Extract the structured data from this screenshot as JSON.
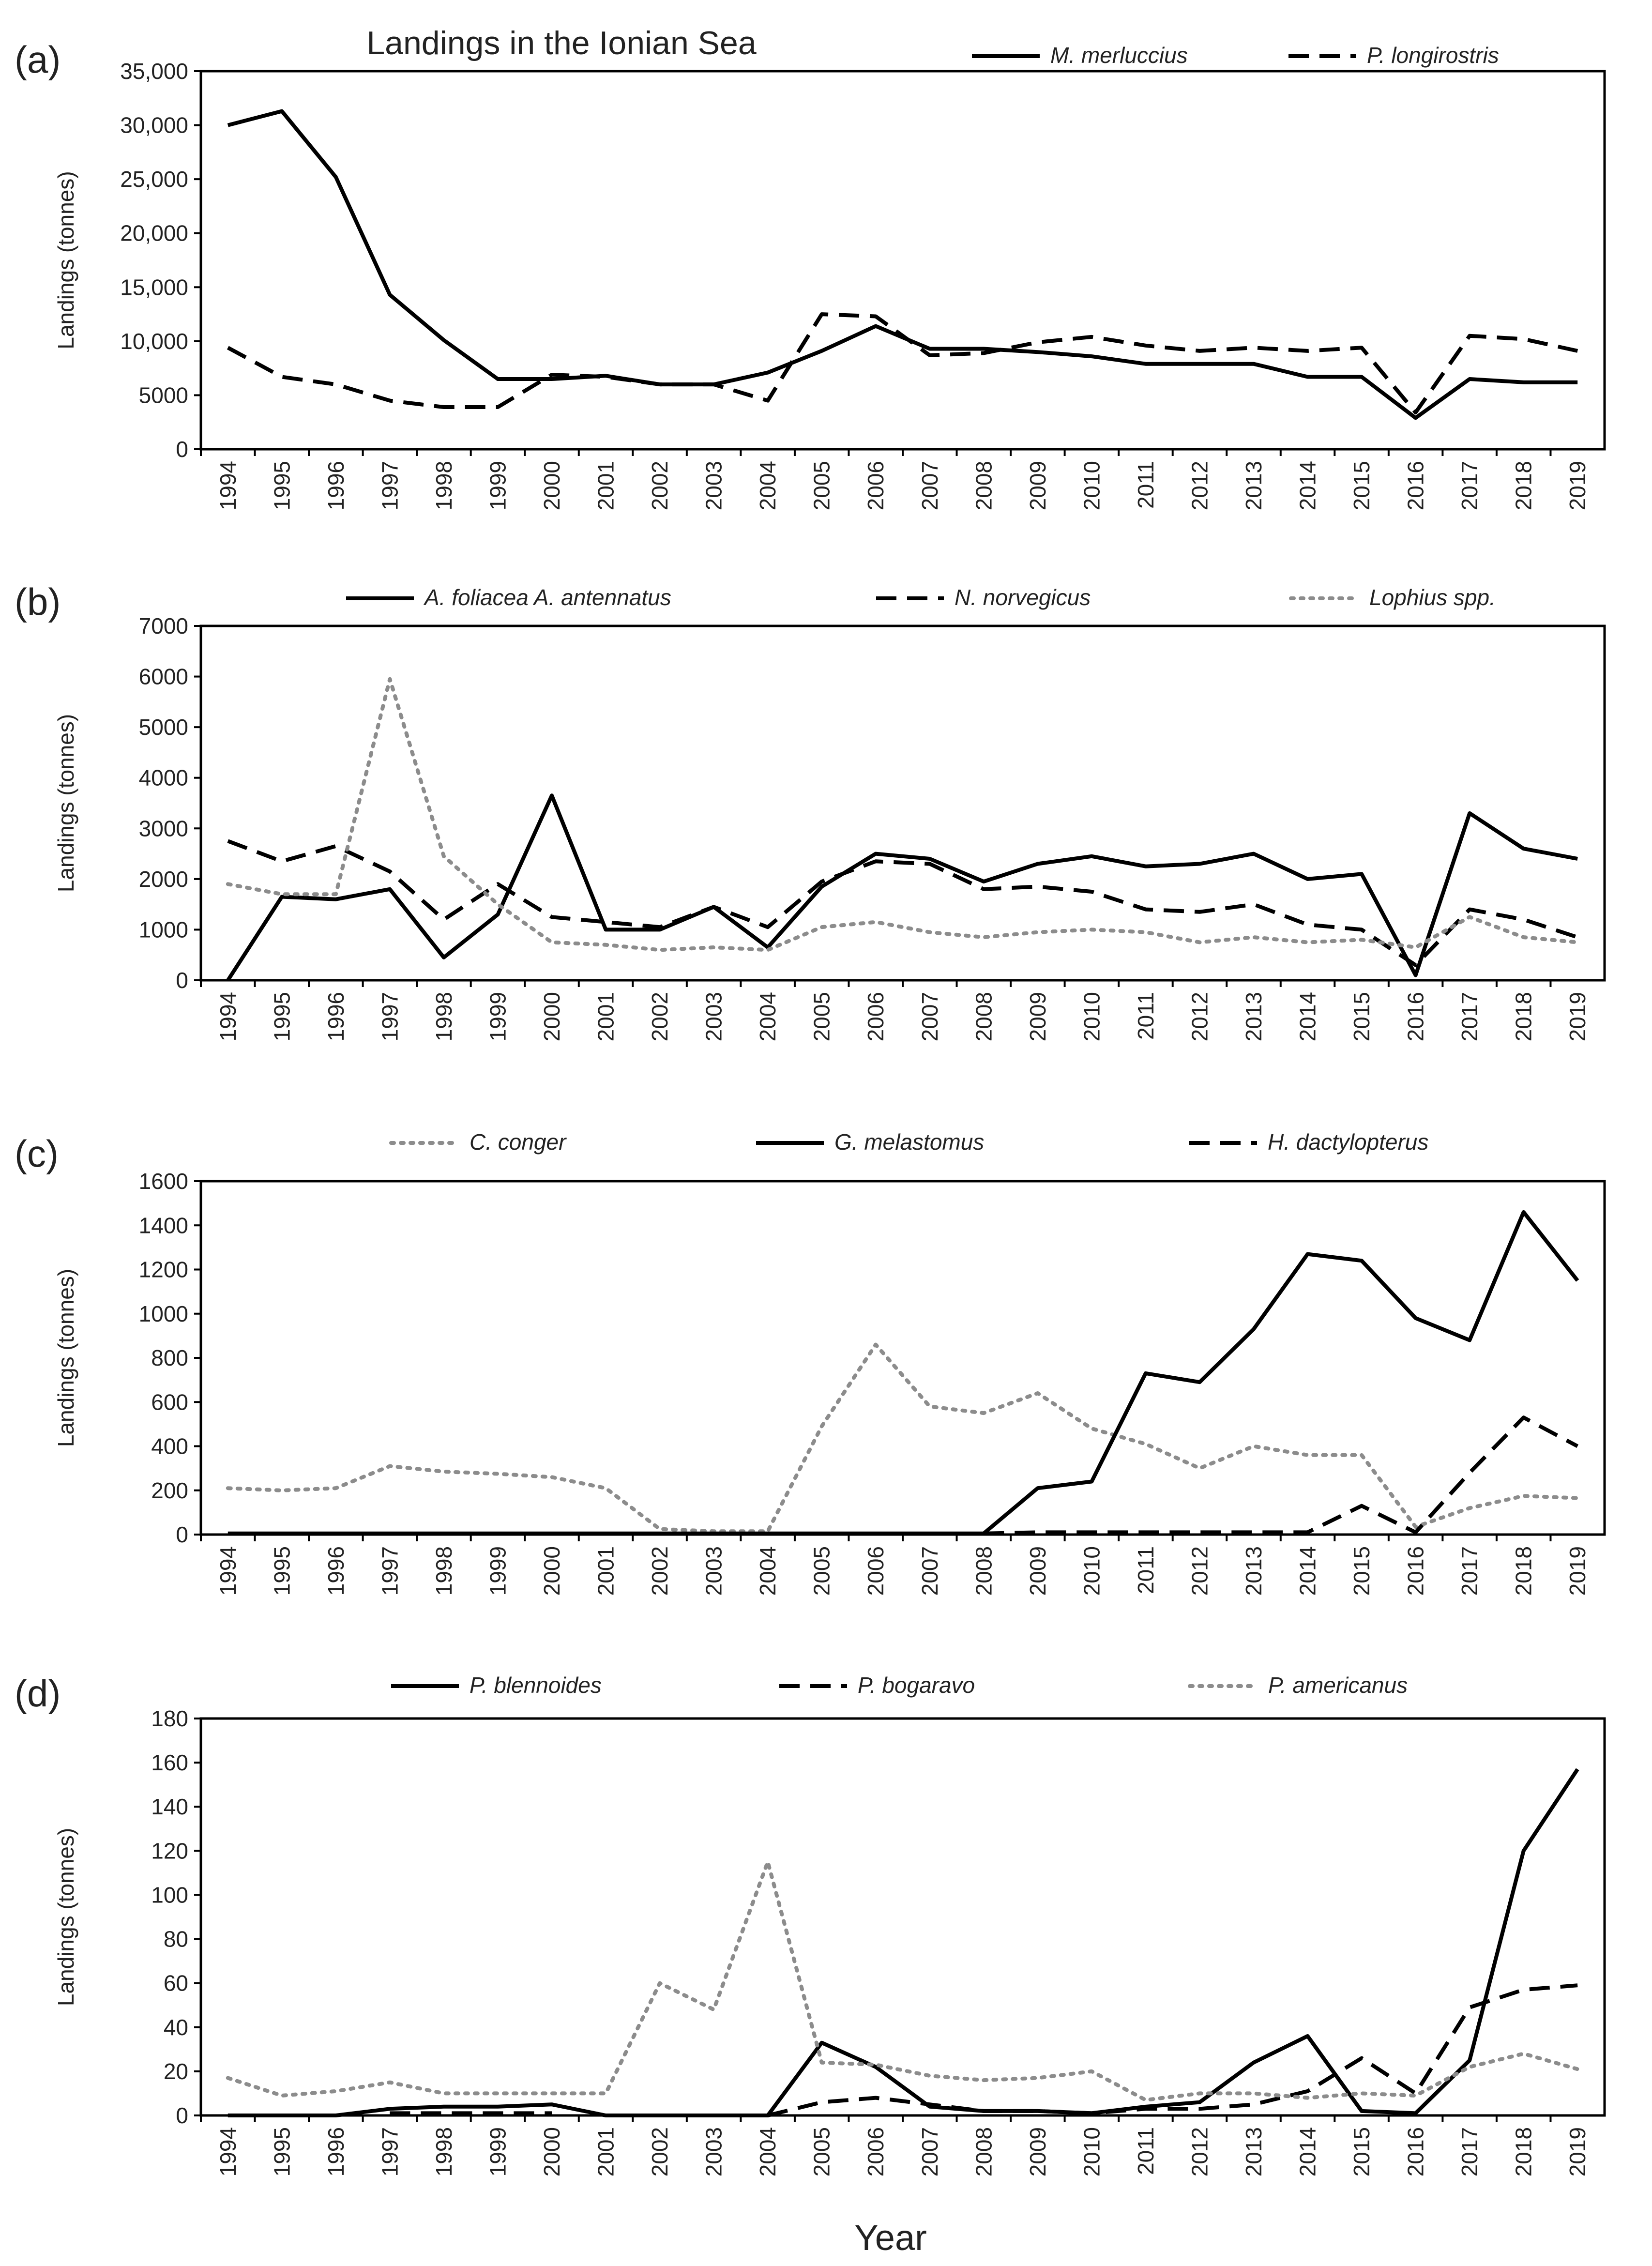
{
  "figure": {
    "title": "Landings in the Ionian Sea",
    "xlabel": "Year"
  },
  "chart_data": [
    {
      "panel": "(a)",
      "type": "line",
      "title": "Landings in the Ionian Sea",
      "xlabel": "",
      "ylabel": "Landings (tonnes)",
      "ylim": [
        0,
        35000
      ],
      "yticks": [
        "0",
        "5000",
        "10,000",
        "15,000",
        "20,000",
        "25,000",
        "30,000",
        "35,000"
      ],
      "ytick_values": [
        0,
        5000,
        10000,
        15000,
        20000,
        25000,
        30000,
        35000
      ],
      "grid": false,
      "legend_position": "top-right",
      "categories": [
        "1994",
        "1995",
        "1996",
        "1997",
        "1998",
        "1999",
        "2000",
        "2001",
        "2002",
        "2003",
        "2004",
        "2005",
        "2006",
        "2007",
        "2008",
        "2009",
        "2010",
        "2011",
        "2012",
        "2013",
        "2014",
        "2015",
        "2016",
        "2017",
        "2018",
        "2019"
      ],
      "series": [
        {
          "name": "M. merluccius",
          "style": "solid",
          "color": "#000000",
          "values": [
            30000,
            31300,
            25200,
            14300,
            10100,
            6500,
            6500,
            6800,
            6000,
            6000,
            7100,
            9100,
            11400,
            9300,
            9300,
            9000,
            8600,
            7900,
            7900,
            7900,
            6700,
            6700,
            2900,
            6500,
            6200,
            6200
          ]
        },
        {
          "name": "P. longirostris",
          "style": "dashed",
          "color": "#000000",
          "values": [
            9400,
            6700,
            6000,
            4500,
            3900,
            3900,
            6900,
            6700,
            6000,
            6000,
            4500,
            12500,
            12300,
            8700,
            8900,
            9900,
            10400,
            9600,
            9100,
            9400,
            9100,
            9400,
            3400,
            10500,
            10200,
            9100
          ]
        }
      ]
    },
    {
      "panel": "(b)",
      "type": "line",
      "title": "",
      "xlabel": "",
      "ylabel": "Landings (tonnes)",
      "ylim": [
        0,
        7000
      ],
      "yticks": [
        "0",
        "1000",
        "2000",
        "3000",
        "4000",
        "5000",
        "6000",
        "7000"
      ],
      "ytick_values": [
        0,
        1000,
        2000,
        3000,
        4000,
        5000,
        6000,
        7000
      ],
      "grid": false,
      "legend_position": "top",
      "categories": [
        "1994",
        "1995",
        "1996",
        "1997",
        "1998",
        "1999",
        "2000",
        "2001",
        "2002",
        "2003",
        "2004",
        "2005",
        "2006",
        "2007",
        "2008",
        "2009",
        "2010",
        "2011",
        "2012",
        "2013",
        "2014",
        "2015",
        "2016",
        "2017",
        "2018",
        "2019"
      ],
      "series": [
        {
          "name": "A. foliacea A. antennatus",
          "style": "solid",
          "color": "#000000",
          "values": [
            0,
            1650,
            1600,
            1800,
            450,
            1300,
            3650,
            1000,
            1000,
            1450,
            650,
            1850,
            2500,
            2400,
            1950,
            2300,
            2450,
            2250,
            2300,
            2500,
            2000,
            2100,
            100,
            3300,
            2600,
            2400
          ]
        },
        {
          "name": "N. norvegicus",
          "style": "dashed",
          "color": "#000000",
          "values": [
            2750,
            2350,
            2650,
            2150,
            1200,
            1900,
            1250,
            1150,
            1050,
            1450,
            1050,
            1950,
            2350,
            2300,
            1800,
            1850,
            1750,
            1400,
            1350,
            1500,
            1100,
            1000,
            300,
            1400,
            1200,
            850
          ]
        },
        {
          "name": "Lophius spp.",
          "style": "dotted",
          "color": "#8c8c8c",
          "values": [
            1900,
            1700,
            1700,
            5950,
            2450,
            1500,
            750,
            700,
            600,
            650,
            600,
            1050,
            1150,
            950,
            850,
            950,
            1000,
            950,
            750,
            850,
            750,
            800,
            650,
            1250,
            850,
            750
          ]
        }
      ]
    },
    {
      "panel": "(c)",
      "type": "line",
      "title": "",
      "xlabel": "",
      "ylabel": "Landings (tonnes)",
      "ylim": [
        0,
        1600
      ],
      "yticks": [
        "0",
        "200",
        "400",
        "600",
        "800",
        "1000",
        "1200",
        "1400",
        "1600"
      ],
      "ytick_values": [
        0,
        200,
        400,
        600,
        800,
        1000,
        1200,
        1400,
        1600
      ],
      "grid": false,
      "legend_position": "top",
      "categories": [
        "1994",
        "1995",
        "1996",
        "1997",
        "1998",
        "1999",
        "2000",
        "2001",
        "2002",
        "2003",
        "2004",
        "2005",
        "2006",
        "2007",
        "2008",
        "2009",
        "2010",
        "2011",
        "2012",
        "2013",
        "2014",
        "2015",
        "2016",
        "2017",
        "2018",
        "2019"
      ],
      "series": [
        {
          "name": "C. conger",
          "style": "dotted",
          "color": "#8c8c8c",
          "values": [
            210,
            200,
            210,
            310,
            285,
            275,
            260,
            210,
            25,
            15,
            15,
            490,
            860,
            580,
            550,
            640,
            480,
            410,
            300,
            400,
            360,
            360,
            35,
            120,
            175,
            165
          ]
        },
        {
          "name": "G. melastomus",
          "style": "solid",
          "color": "#000000",
          "values": [
            5,
            5,
            5,
            5,
            5,
            5,
            5,
            5,
            5,
            5,
            5,
            5,
            5,
            5,
            5,
            210,
            240,
            730,
            690,
            930,
            1270,
            1240,
            980,
            880,
            1460,
            1150
          ]
        },
        {
          "name": "H. dactylopterus",
          "style": "dashed",
          "color": "#000000",
          "values": [
            null,
            null,
            null,
            null,
            null,
            null,
            null,
            null,
            null,
            null,
            null,
            null,
            null,
            null,
            5,
            10,
            10,
            10,
            10,
            10,
            10,
            130,
            10,
            280,
            530,
            400
          ]
        }
      ]
    },
    {
      "panel": "(d)",
      "type": "line",
      "title": "",
      "xlabel": "Year",
      "ylabel": "Landings (tonnes)",
      "ylim": [
        0,
        180
      ],
      "yticks": [
        "0",
        "20",
        "40",
        "60",
        "80",
        "100",
        "120",
        "140",
        "160",
        "180"
      ],
      "ytick_values": [
        0,
        20,
        40,
        60,
        80,
        100,
        120,
        140,
        160,
        180
      ],
      "grid": false,
      "legend_position": "top",
      "categories": [
        "1994",
        "1995",
        "1996",
        "1997",
        "1998",
        "1999",
        "2000",
        "2001",
        "2002",
        "2003",
        "2004",
        "2005",
        "2006",
        "2007",
        "2008",
        "2009",
        "2010",
        "2011",
        "2012",
        "2013",
        "2014",
        "2015",
        "2016",
        "2017",
        "2018",
        "2019"
      ],
      "series": [
        {
          "name": "P. blennoides",
          "style": "solid",
          "color": "#000000",
          "values": [
            0,
            0,
            0,
            3,
            4,
            4,
            5,
            0,
            0,
            0,
            0,
            33,
            22,
            4,
            2,
            2,
            1,
            4,
            6,
            24,
            36,
            2,
            1,
            25,
            120,
            157
          ]
        },
        {
          "name": "P. bogaravo",
          "style": "dashed",
          "color": "#000000",
          "values": [
            null,
            null,
            null,
            1,
            1,
            1,
            1,
            null,
            null,
            null,
            0,
            6,
            8,
            5,
            2,
            2,
            1,
            3,
            3,
            5,
            11,
            26,
            10,
            49,
            57,
            59
          ]
        },
        {
          "name": "P. americanus",
          "style": "dotted",
          "color": "#8c8c8c",
          "values": [
            17,
            9,
            11,
            15,
            10,
            10,
            10,
            10,
            60,
            48,
            115,
            24,
            23,
            18,
            16,
            17,
            20,
            7,
            10,
            10,
            8,
            10,
            9,
            22,
            28,
            21
          ]
        }
      ]
    }
  ]
}
